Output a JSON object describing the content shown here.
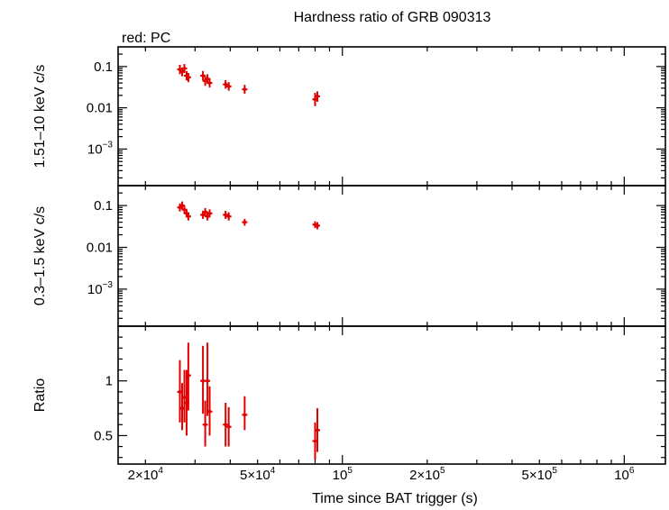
{
  "chart_data": {
    "type": "scatter",
    "title": "Hardness ratio of GRB 090313",
    "legend": "red: PC",
    "xlabel": "Time since BAT trigger (s)",
    "xscale": "log",
    "xlim": [
      16000,
      1400000
    ],
    "x_ticks": [
      {
        "value": 20000,
        "mantissa": "2×10",
        "exp": "4"
      },
      {
        "value": 50000,
        "mantissa": "5×10",
        "exp": "4"
      },
      {
        "value": 100000,
        "mantissa": "10",
        "exp": "5"
      },
      {
        "value": 200000,
        "mantissa": "2×10",
        "exp": "5"
      },
      {
        "value": 500000,
        "mantissa": "5×10",
        "exp": "5"
      },
      {
        "value": 1000000,
        "mantissa": "10",
        "exp": "6"
      }
    ],
    "panels": [
      {
        "id": "hard",
        "ylabel": "1.51–10 keV c/s",
        "yscale": "log",
        "ylim": [
          0.00013,
          0.3
        ],
        "y_ticks": [
          {
            "value": 0.1,
            "label": "0.1"
          },
          {
            "value": 0.01,
            "label": "0.01"
          },
          {
            "value": 0.001,
            "base": "10",
            "exp": "−3"
          }
        ],
        "points": [
          {
            "x": 26500,
            "y": 0.085,
            "ylo": 0.065,
            "yhi": 0.11
          },
          {
            "x": 27000,
            "y": 0.075,
            "ylo": 0.058,
            "yhi": 0.095
          },
          {
            "x": 27500,
            "y": 0.09,
            "ylo": 0.07,
            "yhi": 0.115
          },
          {
            "x": 28000,
            "y": 0.06,
            "ylo": 0.046,
            "yhi": 0.078
          },
          {
            "x": 28400,
            "y": 0.055,
            "ylo": 0.042,
            "yhi": 0.07
          },
          {
            "x": 32000,
            "y": 0.06,
            "ylo": 0.046,
            "yhi": 0.078
          },
          {
            "x": 32600,
            "y": 0.045,
            "ylo": 0.034,
            "yhi": 0.058
          },
          {
            "x": 33200,
            "y": 0.05,
            "ylo": 0.038,
            "yhi": 0.065
          },
          {
            "x": 33800,
            "y": 0.04,
            "ylo": 0.031,
            "yhi": 0.052
          },
          {
            "x": 38500,
            "y": 0.037,
            "ylo": 0.029,
            "yhi": 0.047
          },
          {
            "x": 39500,
            "y": 0.033,
            "ylo": 0.026,
            "yhi": 0.042
          },
          {
            "x": 45000,
            "y": 0.028,
            "ylo": 0.022,
            "yhi": 0.036
          },
          {
            "x": 80000,
            "y": 0.016,
            "ylo": 0.011,
            "yhi": 0.023
          },
          {
            "x": 81500,
            "y": 0.019,
            "ylo": 0.014,
            "yhi": 0.025
          }
        ]
      },
      {
        "id": "soft",
        "ylabel": "0.3–1.5 keV c/s",
        "yscale": "log",
        "ylim": [
          0.00013,
          0.3
        ],
        "y_ticks": [
          {
            "value": 0.1,
            "label": "0.1"
          },
          {
            "value": 0.01,
            "label": "0.01"
          },
          {
            "value": 0.001,
            "base": "10",
            "exp": "−3"
          }
        ],
        "points": [
          {
            "x": 26500,
            "y": 0.09,
            "ylo": 0.072,
            "yhi": 0.112
          },
          {
            "x": 27000,
            "y": 0.1,
            "ylo": 0.08,
            "yhi": 0.125
          },
          {
            "x": 27500,
            "y": 0.08,
            "ylo": 0.064,
            "yhi": 0.1
          },
          {
            "x": 28000,
            "y": 0.065,
            "ylo": 0.052,
            "yhi": 0.081
          },
          {
            "x": 28400,
            "y": 0.055,
            "ylo": 0.044,
            "yhi": 0.069
          },
          {
            "x": 32000,
            "y": 0.06,
            "ylo": 0.048,
            "yhi": 0.075
          },
          {
            "x": 32600,
            "y": 0.07,
            "ylo": 0.056,
            "yhi": 0.087
          },
          {
            "x": 33200,
            "y": 0.055,
            "ylo": 0.044,
            "yhi": 0.069
          },
          {
            "x": 33800,
            "y": 0.065,
            "ylo": 0.052,
            "yhi": 0.081
          },
          {
            "x": 38500,
            "y": 0.06,
            "ylo": 0.048,
            "yhi": 0.075
          },
          {
            "x": 39500,
            "y": 0.055,
            "ylo": 0.044,
            "yhi": 0.069
          },
          {
            "x": 45000,
            "y": 0.04,
            "ylo": 0.033,
            "yhi": 0.048
          },
          {
            "x": 80000,
            "y": 0.035,
            "ylo": 0.029,
            "yhi": 0.042
          },
          {
            "x": 81500,
            "y": 0.033,
            "ylo": 0.027,
            "yhi": 0.04
          }
        ]
      },
      {
        "id": "ratio",
        "ylabel": "Ratio",
        "yscale": "linear",
        "ylim": [
          0.24,
          1.5
        ],
        "y_ticks": [
          {
            "value": 1,
            "label": "1"
          },
          {
            "value": 0.5,
            "label": "0.5"
          }
        ],
        "points": [
          {
            "x": 26500,
            "y": 0.9,
            "ylo": 0.62,
            "yhi": 1.19
          },
          {
            "x": 27000,
            "y": 0.75,
            "ylo": 0.55,
            "yhi": 0.98
          },
          {
            "x": 27500,
            "y": 0.85,
            "ylo": 0.62,
            "yhi": 1.1
          },
          {
            "x": 28000,
            "y": 0.8,
            "ylo": 0.5,
            "yhi": 1.1
          },
          {
            "x": 28400,
            "y": 1.05,
            "ylo": 0.73,
            "yhi": 1.35
          },
          {
            "x": 32000,
            "y": 1.0,
            "ylo": 0.7,
            "yhi": 1.32
          },
          {
            "x": 32600,
            "y": 0.6,
            "ylo": 0.4,
            "yhi": 0.82
          },
          {
            "x": 33200,
            "y": 1.0,
            "ylo": 0.68,
            "yhi": 1.35
          },
          {
            "x": 33800,
            "y": 0.72,
            "ylo": 0.5,
            "yhi": 0.95
          },
          {
            "x": 38500,
            "y": 0.6,
            "ylo": 0.4,
            "yhi": 0.8
          },
          {
            "x": 39500,
            "y": 0.58,
            "ylo": 0.4,
            "yhi": 0.76
          },
          {
            "x": 45000,
            "y": 0.69,
            "ylo": 0.55,
            "yhi": 0.86
          },
          {
            "x": 80000,
            "y": 0.45,
            "ylo": 0.28,
            "yhi": 0.62
          },
          {
            "x": 81500,
            "y": 0.55,
            "ylo": 0.35,
            "yhi": 0.75
          }
        ]
      }
    ]
  }
}
